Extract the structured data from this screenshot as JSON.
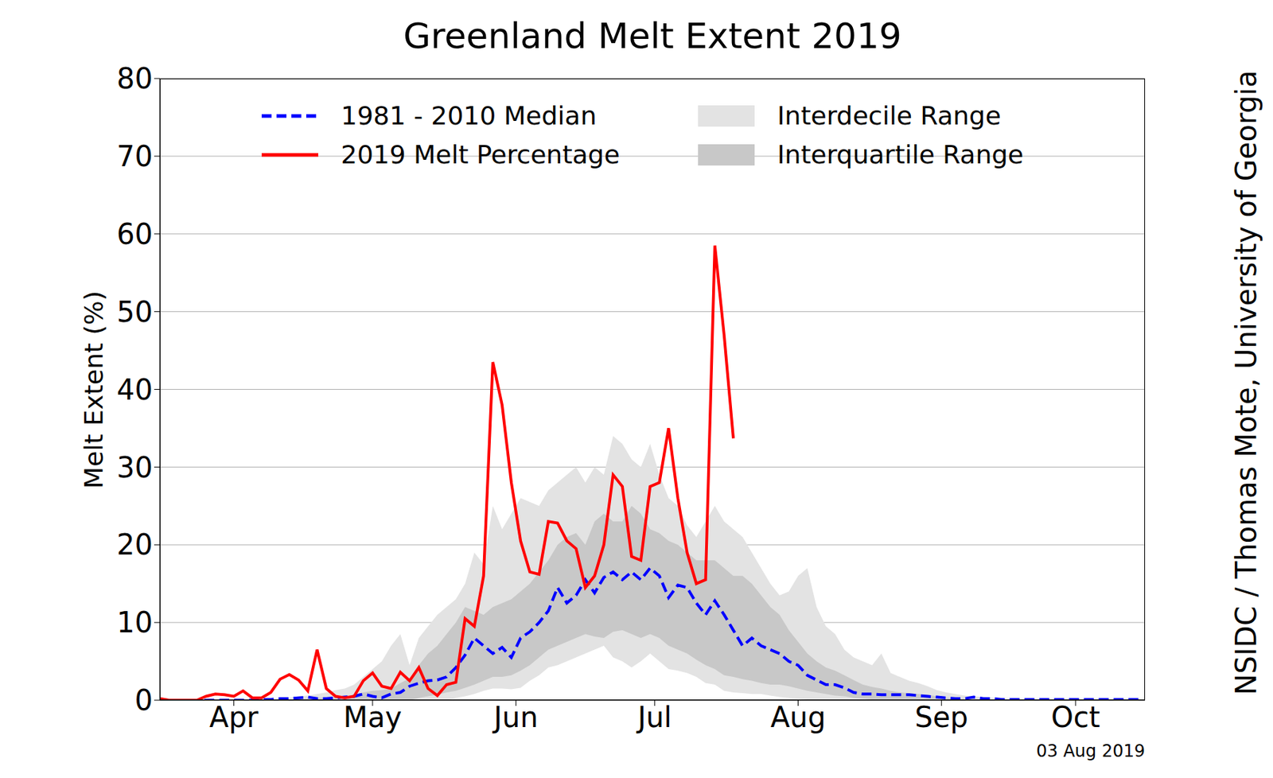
{
  "chart_data": {
    "type": "line",
    "title": "Greenland Melt Extent 2019",
    "ylabel": "Melt Extent (%)",
    "annotations": [
      "NSIDC / Thomas Mote, University of Georgia",
      "03 Aug 2019"
    ],
    "grid": true,
    "legend": "upper center",
    "x": [
      90,
      92,
      94,
      96,
      98,
      100,
      102,
      104,
      106,
      108,
      110,
      112,
      114,
      116,
      118,
      120,
      122,
      124,
      126,
      128,
      130,
      132,
      134,
      136,
      138,
      140,
      142,
      144,
      146,
      148,
      150,
      152,
      154,
      156,
      158,
      160,
      162,
      164,
      166,
      168,
      170,
      172,
      174,
      176,
      178,
      180,
      182,
      184,
      186,
      188,
      190,
      192,
      194,
      196,
      198,
      200,
      202,
      204,
      206,
      208,
      210,
      212,
      214,
      216,
      218,
      220,
      222,
      224,
      226,
      228,
      230,
      232,
      234,
      236,
      238,
      240,
      242,
      244,
      246,
      248,
      250,
      252,
      254,
      256,
      258,
      260,
      262,
      264,
      266,
      268,
      270,
      272,
      274,
      276,
      278,
      280,
      282,
      284,
      286,
      288,
      290,
      292,
      294,
      296,
      298,
      300,
      302
    ],
    "xlim": [
      90,
      303
    ],
    "xticks": [
      {
        "value": 106,
        "label": "Apr"
      },
      {
        "value": 136,
        "label": "May"
      },
      {
        "value": 167,
        "label": "Jun"
      },
      {
        "value": 197,
        "label": "Jul"
      },
      {
        "value": 228,
        "label": "Aug"
      },
      {
        "value": 259,
        "label": "Sep"
      },
      {
        "value": 288,
        "label": "Oct"
      }
    ],
    "ylim": [
      0,
      80
    ],
    "yticks": [
      0,
      10,
      20,
      30,
      40,
      50,
      60,
      70,
      80
    ],
    "series": [
      {
        "name": "1981 - 2010 Median",
        "type": "line",
        "color": "#0000ff",
        "line_style": "dashed",
        "values": [
          0,
          0,
          0,
          0,
          0,
          0,
          0,
          0,
          0,
          0,
          0,
          0.1,
          0.1,
          0.2,
          0.2,
          0.3,
          0.4,
          0.2,
          0.2,
          0.3,
          0.4,
          0.5,
          0.8,
          0.5,
          0.3,
          0.8,
          1.0,
          1.8,
          2.2,
          2.5,
          2.6,
          3.0,
          4.2,
          5.8,
          8.0,
          7.0,
          6.0,
          6.8,
          5.5,
          8.0,
          8.8,
          10,
          11.5,
          14.5,
          12.5,
          13.5,
          15.5,
          13.8,
          15.8,
          16.5,
          15.5,
          16.5,
          15.5,
          17,
          16,
          13.2,
          14.8,
          14.5,
          12.5,
          11,
          12.8,
          11,
          9,
          7,
          8,
          7,
          6.5,
          6,
          5,
          4.5,
          3.2,
          2.6,
          2,
          2,
          1.6,
          1,
          0.8,
          0.8,
          0.7,
          0.7,
          0.7,
          0.7,
          0.6,
          0.5,
          0.4,
          0.3,
          0.2,
          0.2,
          0.4,
          0.2,
          0.2,
          0.1,
          0.1,
          0.1,
          0.1,
          0.1,
          0.1,
          0.1,
          0.1,
          0.1,
          0.1,
          0.1,
          0.1,
          0.1,
          0.1,
          0.1,
          0.1
        ]
      },
      {
        "name": "2019 Melt Percentage",
        "type": "line",
        "color": "#ff0000",
        "line_style": "solid",
        "values": [
          0.2,
          0,
          0,
          0,
          0,
          0.5,
          0.8,
          0.7,
          0.5,
          1.2,
          0.3,
          0.3,
          1.0,
          2.7,
          3.3,
          2.6,
          1.2,
          6.5,
          1.5,
          0.5,
          0.3,
          0.5,
          2.5,
          3.5,
          1.8,
          1.5,
          3.6,
          2.5,
          4.2,
          1.5,
          0.6,
          2.0,
          2.3,
          10.5,
          9.5,
          16,
          43.5,
          38,
          28,
          20.5,
          16.5,
          16.2,
          23,
          22.8,
          20.5,
          19.5,
          14.5,
          16,
          20,
          29,
          27.5,
          18.5,
          18,
          27.5,
          28,
          35,
          26,
          19,
          15,
          15.5,
          58.5,
          47,
          33.7,
          null,
          null,
          null,
          null,
          null,
          null,
          null,
          null,
          null,
          null,
          null,
          null,
          null,
          null,
          null,
          null,
          null,
          null,
          null,
          null,
          null,
          null,
          null,
          null,
          null,
          null,
          null,
          null,
          null,
          null,
          null,
          null,
          null,
          null,
          null,
          null,
          null,
          null,
          null,
          null,
          null,
          null,
          null,
          null
        ]
      },
      {
        "name": "Interdecile Range",
        "type": "range",
        "color": "#e3e3e3",
        "low": [
          0,
          0,
          0,
          0,
          0,
          0,
          0,
          0,
          0,
          0,
          0,
          0,
          0,
          0,
          0,
          0,
          0,
          0,
          0,
          0,
          0,
          0,
          0,
          0,
          0,
          0,
          0,
          0,
          0,
          0,
          0,
          0,
          0.3,
          0.5,
          0.8,
          1.2,
          1.5,
          1.5,
          1.4,
          1.6,
          2.5,
          3.2,
          4.2,
          4.5,
          5,
          5.5,
          6,
          6.5,
          7,
          5.5,
          5,
          4.2,
          5,
          6,
          5,
          4,
          3.8,
          3.5,
          3,
          2.2,
          2,
          1.2,
          1,
          0.9,
          0.8,
          0.8,
          0.6,
          0.4,
          0.3,
          0.2,
          0.1,
          0,
          0,
          0,
          0,
          0,
          0,
          0,
          0,
          0,
          0,
          0,
          0,
          0,
          0,
          0,
          0,
          0,
          0,
          0,
          0,
          0,
          0,
          0,
          0,
          0,
          0,
          0,
          0,
          0,
          0,
          0,
          0,
          0,
          0,
          0,
          0
        ],
        "high": [
          0,
          0,
          0,
          0,
          0,
          0,
          0,
          0,
          0,
          0,
          0,
          0,
          0.1,
          0.2,
          0.3,
          0.5,
          0.6,
          0.8,
          1.0,
          1.3,
          1.5,
          2,
          3,
          4,
          5,
          7,
          8.5,
          4.5,
          8,
          9.5,
          11,
          12,
          13,
          15,
          19,
          17.5,
          25,
          22,
          24,
          26,
          25.5,
          25,
          27,
          28,
          29,
          30,
          28,
          30,
          29,
          34,
          33,
          31,
          30,
          33,
          29,
          26,
          25,
          22.5,
          21,
          23,
          25,
          23,
          22,
          21,
          19,
          17,
          15,
          13.5,
          14,
          16,
          17,
          12,
          9.5,
          8.5,
          6.5,
          5.5,
          5,
          4.5,
          6,
          3.5,
          3,
          2.5,
          2.2,
          1.8,
          1.3,
          1,
          0.8,
          0.6,
          0.5,
          0.4,
          0.3,
          0.3,
          0.2,
          0.2,
          0.2,
          0.2,
          0.2,
          0.2,
          0.2,
          0.2,
          0.2,
          0.2,
          0.2,
          0.2,
          0.2,
          0.2,
          0.2
        ]
      },
      {
        "name": "Interquartile Range",
        "type": "range",
        "color": "#c8c8c8",
        "low": [
          0,
          0,
          0,
          0,
          0,
          0,
          0,
          0,
          0,
          0,
          0,
          0,
          0,
          0,
          0,
          0,
          0,
          0,
          0,
          0,
          0,
          0,
          0,
          0,
          0,
          0,
          0,
          0,
          0.3,
          0.5,
          0.7,
          1.0,
          1.2,
          1.6,
          2,
          2.5,
          3,
          3,
          3.2,
          3.8,
          4.5,
          5.5,
          6.5,
          7,
          7.5,
          8,
          8.5,
          8.2,
          8,
          8.8,
          9,
          8.5,
          8,
          8.5,
          8,
          7,
          6.5,
          6,
          5.2,
          4.5,
          4,
          3.2,
          3,
          2.7,
          2.5,
          2.2,
          2,
          2,
          1.8,
          1.5,
          1.2,
          1,
          0.8,
          0.6,
          0.5,
          0.3,
          0.2,
          0.1,
          0,
          0,
          0,
          0,
          0,
          0,
          0,
          0,
          0,
          0,
          0,
          0,
          0,
          0,
          0,
          0,
          0,
          0,
          0,
          0,
          0,
          0,
          0,
          0,
          0,
          0,
          0,
          0,
          0
        ],
        "high": [
          0,
          0,
          0,
          0,
          0,
          0,
          0,
          0,
          0,
          0,
          0,
          0,
          0,
          0,
          0.1,
          0.2,
          0.2,
          0.3,
          0.3,
          0.4,
          0.5,
          0.7,
          1,
          1.2,
          1.3,
          1.5,
          2.2,
          2.8,
          4.5,
          6,
          7,
          8.5,
          10,
          12,
          11.5,
          11,
          12,
          12.5,
          13,
          14,
          15,
          16.5,
          18,
          20,
          21,
          21.5,
          20,
          23,
          24,
          23,
          23,
          25,
          24,
          22,
          21.5,
          20.5,
          20,
          19,
          18,
          18,
          18,
          17,
          16,
          16,
          15,
          13.5,
          12,
          11,
          9,
          7.5,
          6,
          5,
          4.2,
          3.8,
          3.2,
          2.6,
          2,
          1.7,
          1.5,
          1.2,
          1,
          0.9,
          0.8,
          0.7,
          0.5,
          0.3,
          0.2,
          0.2,
          0.2,
          0.1,
          0.1,
          0.1,
          0.1,
          0.1,
          0.1,
          0.1,
          0.1,
          0.1,
          0.1,
          0.1,
          0.1,
          0.1,
          0.1,
          0.1,
          0.1,
          0.1,
          0.1
        ]
      }
    ]
  }
}
